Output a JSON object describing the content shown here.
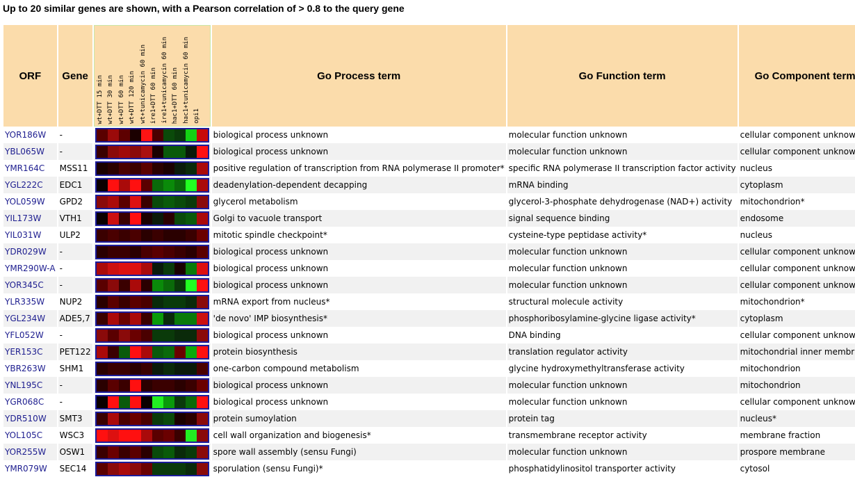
{
  "title": "Up to 20 similar genes are shown, with a Pearson correlation of > 0.8 to the query gene",
  "headers": {
    "orf": "ORF",
    "gene": "Gene",
    "process": "Go Process term",
    "function": "Go Function term",
    "component": "Go Component term"
  },
  "conditions": [
    "wt+DTT 15 min",
    "wt+DTT 30 min",
    "wt+DTT 60 min",
    "wt+DTT 120 min",
    "wt+tunicamycin 60 min",
    "ire1+DTT 60 min",
    "ire1+tunicamycin 60 min",
    "hac1+DTT 60 min",
    "hac1+tunicamycin 60 min",
    "opi1"
  ],
  "rows": [
    {
      "orf": "YOR186W",
      "gene": "-",
      "process": "biological process unknown",
      "function": "molecular function unknown",
      "component": "cellular component unknown",
      "heat": [
        "#5a0000",
        "#9b0a0a",
        "#5d0000",
        "#1b0000",
        "#ff1414",
        "#4a0000",
        "#0a4a0a",
        "#0a3a0a",
        "#14d214",
        "#c80a0a"
      ]
    },
    {
      "orf": "YBL065W",
      "gene": "-",
      "process": "biological process unknown",
      "function": "molecular function unknown",
      "component": "cellular component unknown",
      "heat": [
        "#3a0000",
        "#8a0a0a",
        "#a00a0a",
        "#8a0a0a",
        "#aa1010",
        "#1a0000",
        "#0a5a0a",
        "#0a5a0a",
        "#0a1a0a",
        "#ff1010"
      ]
    },
    {
      "orf": "YMR164C",
      "gene": "MSS11",
      "process": "positive regulation of transcription from RNA polymerase II promoter*",
      "function": "specific RNA polymerase II transcription factor activity",
      "component": "nucleus",
      "heat": [
        "#1a0000",
        "#2a0000",
        "#4a0000",
        "#3a0000",
        "#5a0000",
        "#2a0000",
        "#1a0000",
        "#0a1a0a",
        "#0a2a0a",
        "#aa0a0a"
      ]
    },
    {
      "orf": "YGL222C",
      "gene": "EDC1",
      "process": "deadenylation-dependent decapping",
      "function": "mRNA binding",
      "component": "cytoplasm",
      "heat": [
        "#0a0000",
        "#ff1010",
        "#aa0a0a",
        "#ff1010",
        "#5a0000",
        "#0a6a0a",
        "#0a8a0a",
        "#0a6a0a",
        "#22ff22",
        "#aa0a0a"
      ]
    },
    {
      "orf": "YOL059W",
      "gene": "GPD2",
      "process": "glycerol metabolism",
      "function": "glycerol-3-phosphate dehydrogenase (NAD+) activity",
      "component": "mitochondrion*",
      "heat": [
        "#8a0a0a",
        "#aa0a0a",
        "#5a0000",
        "#dd1010",
        "#3a0000",
        "#0a4a0a",
        "#0a5a0a",
        "#0a4a0a",
        "#0a3a0a",
        "#8a0a0a"
      ]
    },
    {
      "orf": "YIL173W",
      "gene": "VTH1",
      "process": "Golgi to vacuole transport",
      "function": "signal sequence binding",
      "component": "endosome",
      "heat": [
        "#0a0000",
        "#cc1010",
        "#3a0000",
        "#ff1010",
        "#1a0000",
        "#0a1a0a",
        "#2a0000",
        "#0a4a0a",
        "#0a5a0a",
        "#aa0a0a"
      ]
    },
    {
      "orf": "YIL031W",
      "gene": "ULP2",
      "process": "mitotic spindle checkpoint*",
      "function": "cysteine-type peptidase activity*",
      "component": "nucleus",
      "heat": [
        "#3a0000",
        "#4a0000",
        "#3a0000",
        "#4a0000",
        "#2a0000",
        "#3a0000",
        "#2a0000",
        "#2a0000",
        "#3a0000",
        "#6a0000"
      ]
    },
    {
      "orf": "YDR029W",
      "gene": "-",
      "process": "biological process unknown",
      "function": "molecular function unknown",
      "component": "cellular component unknown",
      "heat": [
        "#2a0000",
        "#3a0000",
        "#3a0000",
        "#2a0000",
        "#4a0000",
        "#5a0000",
        "#4a0000",
        "#3a0000",
        "#2a0000",
        "#5a0000"
      ]
    },
    {
      "orf": "YMR290W-A",
      "gene": "-",
      "process": "biological process unknown",
      "function": "molecular function unknown",
      "component": "cellular component unknown",
      "heat": [
        "#aa0a0a",
        "#cc1010",
        "#dd1010",
        "#dd1010",
        "#aa0a0a",
        "#0a1a0a",
        "#0a3a0a",
        "#1a0000",
        "#0a7a0a",
        "#dd1010"
      ]
    },
    {
      "orf": "YOR345C",
      "gene": "-",
      "process": "biological process unknown",
      "function": "molecular function unknown",
      "component": "cellular component unknown",
      "heat": [
        "#5a0000",
        "#8a0a0a",
        "#3a0000",
        "#aa0a0a",
        "#2a0000",
        "#0a8a0a",
        "#0a6a0a",
        "#0a3a0a",
        "#22ff22",
        "#ff1010"
      ]
    },
    {
      "orf": "YLR335W",
      "gene": "NUP2",
      "process": "mRNA export from nucleus*",
      "function": "structural molecule activity",
      "component": "mitochondrion*",
      "heat": [
        "#2a0000",
        "#5a0000",
        "#3a0000",
        "#5a0000",
        "#4a0000",
        "#0a2a0a",
        "#0a3a0a",
        "#0a3a0a",
        "#0a2a0a",
        "#8a0a0a"
      ]
    },
    {
      "orf": "YGL234W",
      "gene": "ADE5,7",
      "process": "'de novo' IMP biosynthesis*",
      "function": "phosphoribosylamine-glycine ligase activity*",
      "component": "cytoplasm",
      "heat": [
        "#3a0000",
        "#aa0a0a",
        "#6a0000",
        "#aa0a0a",
        "#3a0000",
        "#0a9a0a",
        "#0a2a0a",
        "#0a7a0a",
        "#0a7a0a",
        "#cc1010"
      ]
    },
    {
      "orf": "YFL052W",
      "gene": "-",
      "process": "biological process unknown",
      "function": "DNA binding",
      "component": "cellular component unknown",
      "heat": [
        "#8a0a0a",
        "#5a0000",
        "#8a0a0a",
        "#6a0000",
        "#4a0000",
        "#0a3a0a",
        "#0a3a0a",
        "#0a2a0a",
        "#0a2a0a",
        "#8a0a0a"
      ]
    },
    {
      "orf": "YER153C",
      "gene": "PET122",
      "process": "protein biosynthesis",
      "function": "translation regulator activity",
      "component": "mitochondrial inner membrane",
      "heat": [
        "#aa0a0a",
        "#3a0000",
        "#0a5a0a",
        "#ff1010",
        "#aa0a0a",
        "#0a5a0a",
        "#0a6a0a",
        "#6a0000",
        "#0aaa0a",
        "#ff1010"
      ]
    },
    {
      "orf": "YBR263W",
      "gene": "SHM1",
      "process": "one-carbon compound metabolism",
      "function": "glycine hydroxymethyltransferase activity",
      "component": "mitochondrion",
      "heat": [
        "#2a0000",
        "#3a0000",
        "#3a0000",
        "#2a0000",
        "#3a0000",
        "#0a1a0a",
        "#0a2a0a",
        "#0a1a0a",
        "#0a1a0a",
        "#4a0000"
      ]
    },
    {
      "orf": "YNL195C",
      "gene": "-",
      "process": "biological process unknown",
      "function": "molecular function unknown",
      "component": "mitochondrion",
      "heat": [
        "#2a0000",
        "#5a0000",
        "#3a0000",
        "#ff1010",
        "#2a0000",
        "#3a0000",
        "#3a0000",
        "#2a0000",
        "#3a0000",
        "#6a0000"
      ]
    },
    {
      "orf": "YGR068C",
      "gene": "-",
      "process": "biological process unknown",
      "function": "molecular function unknown",
      "component": "cellular component unknown",
      "heat": [
        "#0a0000",
        "#ff1010",
        "#0a5a0a",
        "#ff1010",
        "#0a0000",
        "#22ee22",
        "#0a9a0a",
        "#0a3a0a",
        "#0a6a0a",
        "#ff1010"
      ]
    },
    {
      "orf": "YDR510W",
      "gene": "SMT3",
      "process": "protein sumoylation",
      "function": "protein tag",
      "component": "nucleus*",
      "heat": [
        "#3a0000",
        "#aa0a0a",
        "#4a0000",
        "#6a0000",
        "#4a0000",
        "#0a3a0a",
        "#0a4a0a",
        "#1a0000",
        "#2a0000",
        "#8a0a0a"
      ]
    },
    {
      "orf": "YOL105C",
      "gene": "WSC3",
      "process": "cell wall organization and biogenesis*",
      "function": "transmembrane receptor activity",
      "component": "membrane fraction",
      "heat": [
        "#ff1010",
        "#dd1010",
        "#ff1010",
        "#ff1010",
        "#aa0a0a",
        "#5a0000",
        "#6a0000",
        "#3a0000",
        "#22ee22",
        "#8a0a0a"
      ]
    },
    {
      "orf": "YOR255W",
      "gene": "OSW1",
      "process": "spore wall assembly (sensu Fungi)",
      "function": "molecular function unknown",
      "component": "prospore membrane",
      "heat": [
        "#3a0000",
        "#6a0000",
        "#3a0000",
        "#5a0000",
        "#2a0000",
        "#0a4a0a",
        "#0a5a0a",
        "#0a2a0a",
        "#0a3a0a",
        "#8a0a0a"
      ]
    },
    {
      "orf": "YMR079W",
      "gene": "SEC14",
      "process": "sporulation (sensu Fungi)*",
      "function": "phosphatidylinositol transporter activity",
      "component": "cytosol",
      "heat": [
        "#5a0000",
        "#8a0a0a",
        "#aa0a0a",
        "#8a0a0a",
        "#6a0000",
        "#0a3a0a",
        "#0a3a0a",
        "#0a3a0a",
        "#0a2a0a",
        "#8a0a0a"
      ]
    }
  ]
}
